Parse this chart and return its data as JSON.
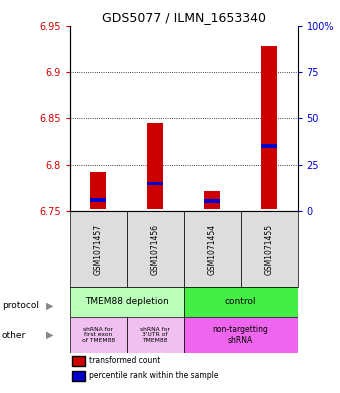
{
  "title": "GDS5077 / ILMN_1653340",
  "samples": [
    "GSM1071457",
    "GSM1071456",
    "GSM1071454",
    "GSM1071455"
  ],
  "bar_bottoms": [
    6.752,
    6.752,
    6.752,
    6.752
  ],
  "bar_tops": [
    6.792,
    6.845,
    6.772,
    6.928
  ],
  "percentile_values": [
    6.762,
    6.78,
    6.761,
    6.82
  ],
  "ylim_left": [
    6.75,
    6.95
  ],
  "yticks_left": [
    6.75,
    6.8,
    6.85,
    6.9,
    6.95
  ],
  "ytick_left_labels": [
    "6.75",
    "6.8",
    "6.85",
    "6.9",
    "6.95"
  ],
  "yticks_right": [
    0,
    25,
    50,
    75,
    100
  ],
  "ytick_right_labels": [
    "0",
    "25",
    "50",
    "75",
    "100%"
  ],
  "bar_color": "#cc0000",
  "percentile_color": "#0000cc",
  "protocol_labels": [
    "TMEM88 depletion",
    "control"
  ],
  "protocol_color_left": "#bbffbb",
  "protocol_color_right": "#44ee44",
  "other_labels_left1": "shRNA for\nfirst exon\nof TMEM88",
  "other_labels_left2": "shRNA for\n3'UTR of\nTMEM88",
  "other_label_right": "non-targetting\nshRNA",
  "other_color_left": "#f0c0f0",
  "other_color_right": "#ee66ee",
  "legend_red": "transformed count",
  "legend_blue": "percentile rank within the sample",
  "left_label_color": "#cc0000",
  "right_label_color": "#0000cc",
  "grid_lines": [
    6.8,
    6.85,
    6.9
  ]
}
